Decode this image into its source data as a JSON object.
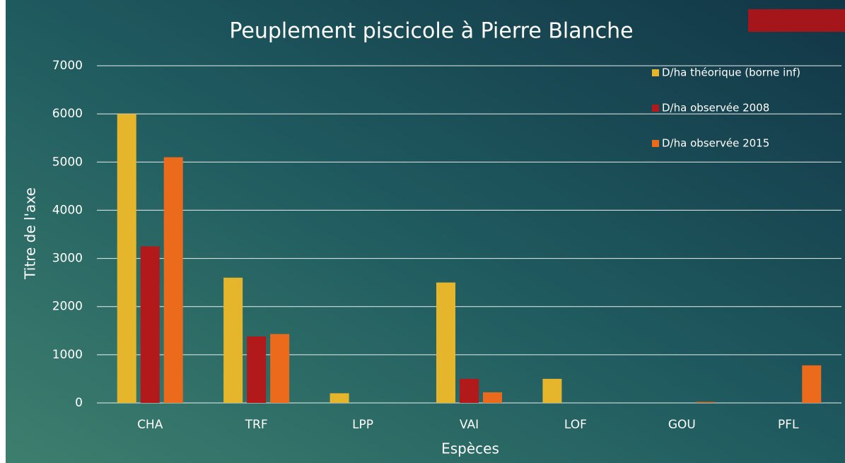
{
  "chart_data": {
    "type": "bar",
    "title": "Peuplement piscicole à Pierre Blanche",
    "x_label": "Espèces",
    "y_label": "Titre de l'axe",
    "categories": [
      "CHA",
      "TRF",
      "LPP",
      "VAI",
      "LOF",
      "GOU",
      "PFL"
    ],
    "series": [
      {
        "name": "D/ha théorique (borne inf)",
        "color": "#e5b62c",
        "values": [
          6000,
          2600,
          200,
          2500,
          500,
          0,
          0
        ]
      },
      {
        "name": "D/ha observée 2008",
        "color": "#b2191b",
        "values": [
          3250,
          1380,
          0,
          500,
          0,
          0,
          0
        ]
      },
      {
        "name": "D/ha observée 2015",
        "color": "#ec6a1c",
        "values": [
          5100,
          1430,
          0,
          220,
          0,
          20,
          780
        ]
      }
    ],
    "ylim": [
      0,
      7000
    ],
    "yticks": [
      0,
      1000,
      2000,
      3000,
      4000,
      5000,
      6000,
      7000
    ],
    "grid": true,
    "legend": "top-right"
  }
}
